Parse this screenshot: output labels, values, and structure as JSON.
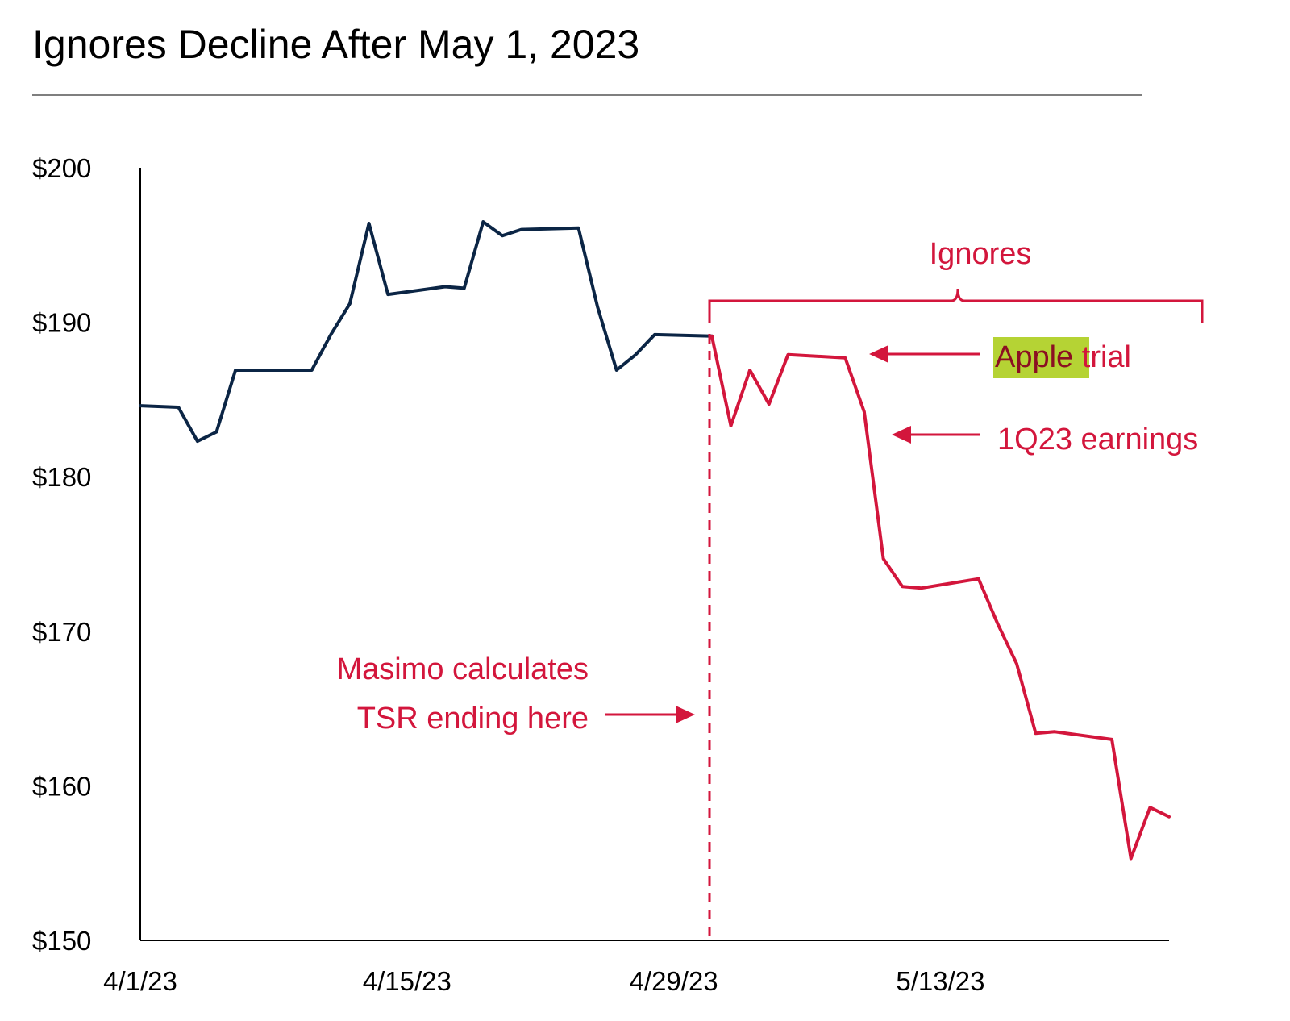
{
  "chart_data": {
    "type": "line",
    "title": "Ignores Decline After May 1, 2023",
    "xlabel": "",
    "ylabel": "",
    "ylim": [
      150,
      200
    ],
    "yticks": [
      200,
      190,
      180,
      170,
      160,
      150
    ],
    "ytick_labels": [
      "$200",
      "$190",
      "$180",
      "$170",
      "$160",
      "$150"
    ],
    "xlim": [
      "2023-04-01",
      "2023-05-25"
    ],
    "xtick_labels": [
      "4/1/23",
      "4/15/23",
      "4/29/23",
      "5/13/23"
    ],
    "xtick_dates": [
      "2023-04-01",
      "2023-04-15",
      "2023-04-29",
      "2023-05-13"
    ],
    "grid": false,
    "legend": "none",
    "series": [
      {
        "color": "#0b2545",
        "x": [
          "2023-04-01",
          "2023-04-03",
          "2023-04-04",
          "2023-04-05",
          "2023-04-06",
          "2023-04-10",
          "2023-04-11",
          "2023-04-12",
          "2023-04-13",
          "2023-04-14",
          "2023-04-17",
          "2023-04-18",
          "2023-04-19",
          "2023-04-20",
          "2023-04-21",
          "2023-04-24",
          "2023-04-25",
          "2023-04-26",
          "2023-04-27",
          "2023-04-28",
          "2023-05-01"
        ],
        "values": [
          184.6,
          184.5,
          182.3,
          182.9,
          186.9,
          186.9,
          189.2,
          191.2,
          196.4,
          191.8,
          192.3,
          192.2,
          196.5,
          195.6,
          196.0,
          196.1,
          191.0,
          186.9,
          187.9,
          189.2,
          189.1
        ]
      },
      {
        "color": "#d3163c",
        "x": [
          "2023-05-01",
          "2023-05-02",
          "2023-05-03",
          "2023-05-04",
          "2023-05-05",
          "2023-05-08",
          "2023-05-09",
          "2023-05-10",
          "2023-05-11",
          "2023-05-12",
          "2023-05-15",
          "2023-05-16",
          "2023-05-17",
          "2023-05-18",
          "2023-05-19",
          "2023-05-22",
          "2023-05-23",
          "2023-05-24",
          "2023-05-25"
        ],
        "values": [
          189.1,
          183.3,
          186.9,
          184.7,
          187.9,
          187.7,
          184.2,
          174.7,
          172.9,
          172.8,
          173.4,
          170.5,
          167.9,
          163.4,
          163.5,
          163.0,
          155.3,
          158.6,
          158.0
        ]
      }
    ],
    "annotations": {
      "bracket_label": "Ignores",
      "apple_highlight": "Apple",
      "apple_rest": " trial",
      "earnings": "1Q23 earnings",
      "masimo_line1": "Masimo calculates",
      "masimo_line2": "TSR ending here",
      "highlight_color": "#b5d334",
      "accent_color": "#d3163c"
    }
  }
}
